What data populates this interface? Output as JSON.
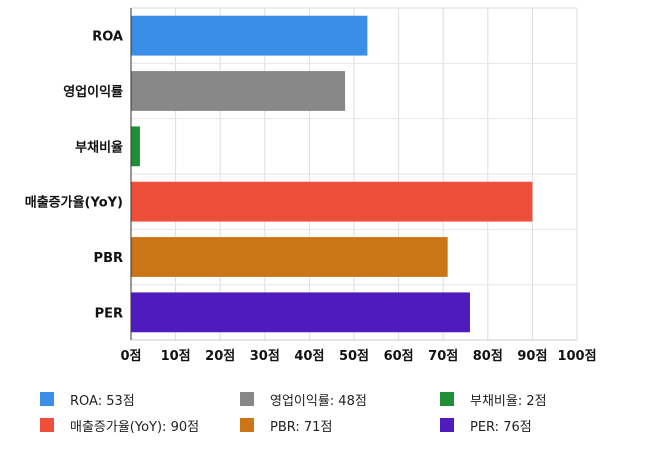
{
  "chart_data": {
    "type": "bar",
    "orientation": "horizontal",
    "categories": [
      "ROA",
      "영업이익률",
      "부채비율",
      "매출증가율(YoY)",
      "PBR",
      "PER"
    ],
    "values": [
      53,
      48,
      2,
      90,
      71,
      76
    ],
    "colors": [
      "#3b8ee8",
      "#888888",
      "#1e8f36",
      "#ee4f3a",
      "#cc7518",
      "#4f1bbf"
    ],
    "xlim": [
      0,
      100
    ],
    "x_ticks": [
      "0점",
      "10점",
      "20점",
      "30점",
      "40점",
      "50점",
      "60점",
      "70점",
      "80점",
      "90점",
      "100점"
    ],
    "grid": true,
    "legend_position": "bottom",
    "legend": [
      "ROA: 53점",
      "영업이익률: 48점",
      "부채비율: 2점",
      "매출증가율(YoY): 90점",
      "PBR: 71점",
      "PER: 76점"
    ]
  }
}
